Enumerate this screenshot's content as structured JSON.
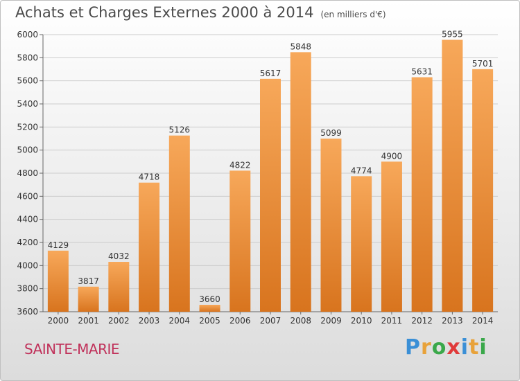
{
  "title": "Achats et Charges Externes 2000 à 2014",
  "unit_note": "(en milliers d'€)",
  "town": "SAINTE-MARIE",
  "logo": {
    "letters": [
      "P",
      "r",
      "o",
      "x",
      "i",
      "t",
      "i"
    ],
    "colors": [
      "#3a8fd6",
      "#e8a23a",
      "#3aa84a",
      "#e03a3a",
      "#3a8fd6",
      "#e8a23a",
      "#3aa84a"
    ]
  },
  "colors": {
    "bar_light": "#f7a85a",
    "bar_dark": "#d8741e",
    "grid": "#cccccc",
    "text": "#333333"
  },
  "chart_data": {
    "type": "bar",
    "title": "Achats et Charges Externes 2000 à 2014",
    "categories": [
      "2000",
      "2001",
      "2002",
      "2003",
      "2004",
      "2005",
      "2006",
      "2007",
      "2008",
      "2009",
      "2010",
      "2011",
      "2012",
      "2013",
      "2014"
    ],
    "values": [
      4129,
      3817,
      4032,
      4718,
      5126,
      3660,
      4822,
      5617,
      5848,
      5099,
      4774,
      4900,
      5631,
      5955,
      5701
    ],
    "ylim": [
      3600,
      6000
    ],
    "yticks": [
      3600,
      3800,
      4000,
      4200,
      4400,
      4600,
      4800,
      5000,
      5200,
      5400,
      5600,
      5800,
      6000
    ],
    "grid": true,
    "xlabel": "",
    "ylabel": ""
  }
}
